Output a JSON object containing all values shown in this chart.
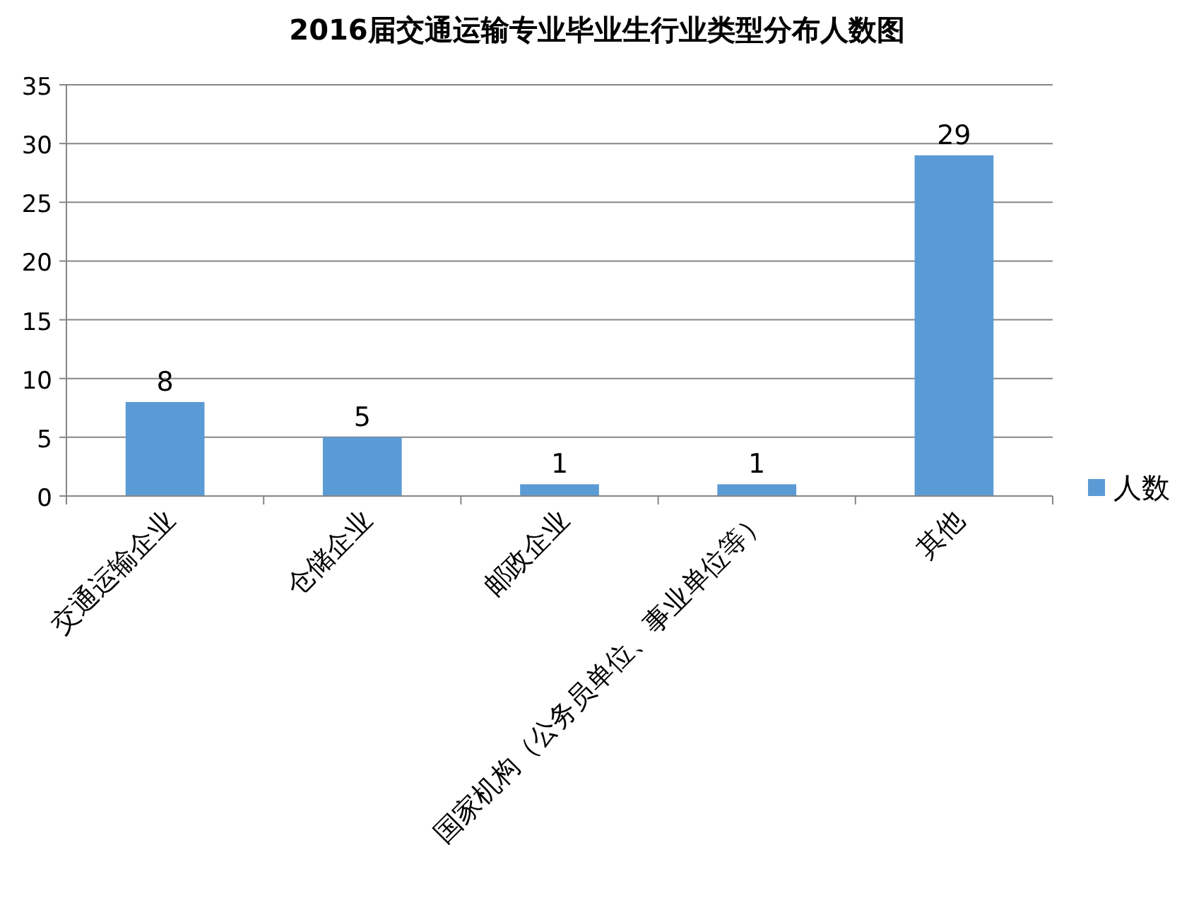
{
  "chart_data": {
    "type": "bar",
    "title": "2016届交通运输专业毕业生行业类型分布人数图",
    "categories": [
      "交通运输企业",
      "仓储企业",
      "邮政企业",
      "国家机构（公务员单位、事业单位等）",
      "其他"
    ],
    "series": [
      {
        "name": "人数",
        "color": "#5b9bd5",
        "values": [
          8,
          5,
          1,
          1,
          29
        ]
      }
    ],
    "ylim": [
      0,
      35
    ],
    "yticks": [
      0,
      5,
      10,
      15,
      20,
      25,
      30,
      35
    ],
    "grid": "y",
    "legend": "right",
    "data_labels": true
  }
}
